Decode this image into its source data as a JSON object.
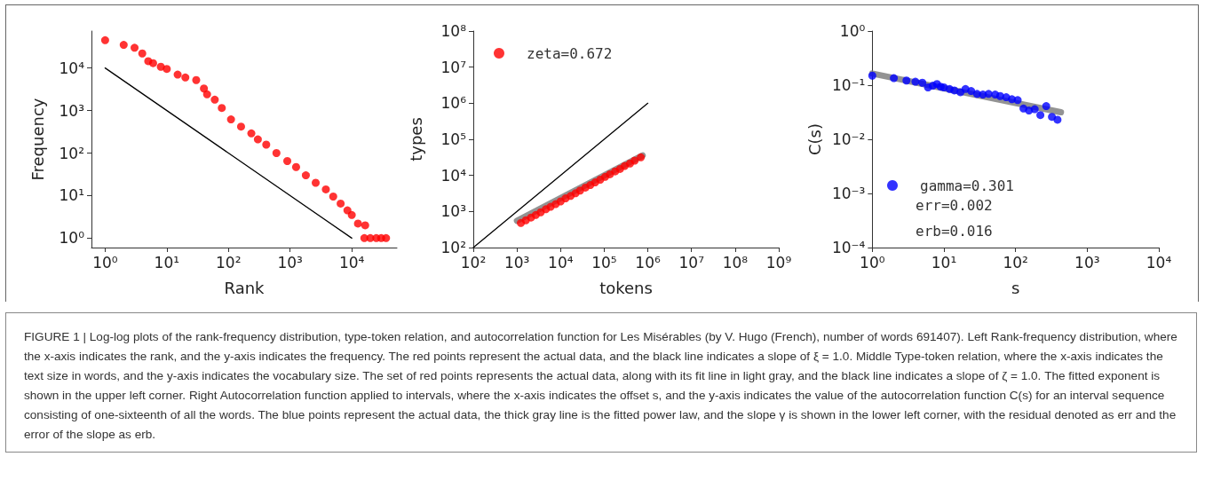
{
  "chart_data": [
    {
      "type": "scatter",
      "xlabel": "Rank",
      "ylabel": "Frequency",
      "log": "xy",
      "grid": false,
      "xlim": [
        0.6,
        54000
      ],
      "ylim": [
        0.6,
        74000
      ],
      "xticks": [
        {
          "value": 1,
          "label": "10⁰"
        },
        {
          "value": 10,
          "label": "10¹"
        },
        {
          "value": 100,
          "label": "10²"
        },
        {
          "value": 1000,
          "label": "10³"
        },
        {
          "value": 10000,
          "label": "10⁴"
        }
      ],
      "yticks": [
        {
          "value": 1,
          "label": "10⁰"
        },
        {
          "value": 10,
          "label": "10¹"
        },
        {
          "value": 100,
          "label": "10²"
        },
        {
          "value": 1000,
          "label": "10³"
        },
        {
          "value": 10000,
          "label": "10⁴"
        }
      ],
      "series": [
        {
          "color": "#ff0000",
          "marker": "circle",
          "x": [
            1,
            2,
            3,
            4,
            5,
            6,
            8,
            10,
            15,
            20,
            30,
            40,
            45,
            60,
            78,
            110,
            160,
            235,
            300,
            410,
            600,
            900,
            1250,
            1800,
            2600,
            3800,
            5000,
            6600,
            8500,
            10000,
            12600,
            16500,
            16000,
            20000,
            25000,
            30000,
            36000
          ],
          "values": [
            45000,
            35000,
            30000,
            22000,
            14500,
            13000,
            10700,
            9500,
            7000,
            6000,
            5200,
            3300,
            2400,
            1800,
            1150,
            620,
            420,
            290,
            210,
            158,
            100,
            65,
            47,
            30,
            20,
            14,
            9.5,
            6.5,
            4.5,
            3.5,
            2.2,
            2,
            1,
            1,
            1,
            1,
            1
          ]
        },
        {
          "type": "line",
          "marker": "none",
          "color": "#000000",
          "x": [
            1,
            10000
          ],
          "values": [
            10000,
            1
          ]
        }
      ]
    },
    {
      "type": "scatter",
      "xlabel": "tokens",
      "ylabel": "types",
      "log": "xy",
      "grid": false,
      "legend": "top left",
      "xlim": [
        100,
        1000000000
      ],
      "ylim": [
        100,
        100000000
      ],
      "xticks": [
        {
          "value": 100,
          "label": "10²"
        },
        {
          "value": 1000,
          "label": "10³"
        },
        {
          "value": 10000,
          "label": "10⁴"
        },
        {
          "value": 100000,
          "label": "10⁵"
        },
        {
          "value": 1000000,
          "label": "10⁶"
        },
        {
          "value": 10000000,
          "label": "10⁷"
        },
        {
          "value": 100000000,
          "label": "10⁸"
        },
        {
          "value": 1000000000,
          "label": "10⁹"
        }
      ],
      "yticks": [
        {
          "value": 100,
          "label": "10²"
        },
        {
          "value": 1000,
          "label": "10³"
        },
        {
          "value": 10000,
          "label": "10⁴"
        },
        {
          "value": 100000,
          "label": "10⁵"
        },
        {
          "value": 1000000,
          "label": "10⁶"
        },
        {
          "value": 10000000,
          "label": "10⁷"
        },
        {
          "value": 100000000,
          "label": "10⁸"
        }
      ],
      "series": [
        {
          "type": "line",
          "marker": "none",
          "color": "#808080",
          "x": [
            1000,
            760000
          ],
          "values": [
            550,
            36000
          ]
        },
        {
          "type": "line",
          "marker": "none",
          "color": "#000000",
          "x": [
            100,
            1000000
          ],
          "values": [
            100,
            1000000
          ]
        },
        {
          "name": "zeta=0.672",
          "marker": "circle",
          "color": "#ff0000",
          "x": [
            1230,
            1600,
            2100,
            2700,
            3500,
            4600,
            5900,
            7700,
            10000,
            13000,
            17000,
            22000,
            28000,
            37000,
            48000,
            62000,
            81000,
            105000,
            135000,
            178000,
            230000,
            295000,
            390000,
            500000,
            690000
          ],
          "values": [
            480,
            570,
            680,
            800,
            950,
            1150,
            1350,
            1600,
            1900,
            2300,
            2700,
            3200,
            3800,
            4600,
            5400,
            6400,
            7600,
            9100,
            10700,
            12900,
            15100,
            18200,
            21400,
            25700,
            31600
          ]
        }
      ]
    },
    {
      "type": "scatter",
      "xlabel": "s",
      "ylabel": "C(s)",
      "log": "xy",
      "grid": false,
      "legend": "bottom left",
      "xlim": [
        1,
        10000
      ],
      "ylim": [
        0.0001,
        1
      ],
      "xticks": [
        {
          "value": 1,
          "label": "10⁰"
        },
        {
          "value": 10,
          "label": "10¹"
        },
        {
          "value": 100,
          "label": "10²"
        },
        {
          "value": 1000,
          "label": "10³"
        },
        {
          "value": 10000,
          "label": "10⁴"
        }
      ],
      "yticks": [
        {
          "value": 0.0001,
          "label": "10⁻⁴"
        },
        {
          "value": 0.001,
          "label": "10⁻³"
        },
        {
          "value": 0.01,
          "label": "10⁻²"
        },
        {
          "value": 0.1,
          "label": "10⁻¹"
        },
        {
          "value": 1,
          "label": "10⁰"
        }
      ],
      "annotations": [
        "err=0.002",
        "erb=0.016",
        "FIGURE 1 | Log-log plots of the rank-frequency distribution, type-token relation, and autocorrelation function for Les Misérables (by V. Hugo (French), number of words 691407). Left Rank-frequency distribution, where the x-axis indicates the rank, and the y-axis indicates the frequency. The red points represent the actual data, and the black line indicates a slope of ξ = 1.0. Middle Type-token relation, where the x-axis indicates the text size in words, and the y-axis indicates the vocabulary size. The set of red points represents the actual data, along with its fit line in light gray, and the black line indicates a slope of ζ = 1.0. The fitted exponent is shown in the upper left corner. Right Autocorrelation function applied to intervals, where the x-axis indicates the offset s, and the y-axis indicates the value of the autocorrelation function C(s) for an interval sequence consisting of one-sixteenth of all the words. The blue points represent the actual data, the thick gray line is the fitted power law, and the slope γ is shown in the lower left corner, with the residual denoted as err and the error of the slope as erb."
      ],
      "series": [
        {
          "type": "line",
          "marker": "none",
          "color": "#808080",
          "x": [
            1,
            430
          ],
          "values": [
            0.164,
            0.0316
          ]
        },
        {
          "name": "gamma=0.301",
          "marker": "circle",
          "color": "#0000ff",
          "x": [
            1,
            2,
            3,
            4,
            5,
            6,
            7,
            8,
            9,
            10,
            12,
            14,
            17,
            20,
            24,
            29,
            35,
            42,
            52,
            61,
            74,
            89,
            107,
            129,
            154,
            185,
            222,
            268,
            322,
            385
          ],
          "values": [
            0.15,
            0.135,
            0.122,
            0.116,
            0.111,
            0.091,
            0.098,
            0.105,
            0.094,
            0.091,
            0.085,
            0.08,
            0.074,
            0.085,
            0.078,
            0.069,
            0.067,
            0.069,
            0.067,
            0.063,
            0.06,
            0.055,
            0.053,
            0.037,
            0.034,
            0.036,
            0.028,
            0.041,
            0.026,
            0.023
          ]
        }
      ]
    }
  ]
}
